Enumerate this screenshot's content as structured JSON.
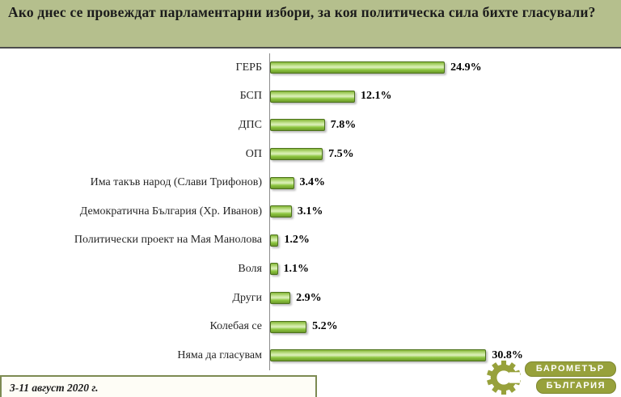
{
  "header": {
    "title": "Ако днес се провеждат парламентарни избори, за коя политическа сила бихте гласували?"
  },
  "chart_data": {
    "type": "bar",
    "orientation": "horizontal",
    "title": "Ако днес се провеждат парламентарни избори, за коя политическа сила бихте гласували?",
    "categories": [
      "ГЕРБ",
      "БСП",
      "ДПС",
      "ОП",
      "Има такъв народ (Слави Трифонов)",
      "Демократична България (Хр. Иванов)",
      "Политически проект на Мая Манолова",
      "Воля",
      "Други",
      "Колебая се",
      "Няма да гласувам"
    ],
    "values": [
      24.9,
      12.1,
      7.8,
      7.5,
      3.4,
      3.1,
      1.2,
      1.1,
      2.9,
      5.2,
      30.8
    ],
    "value_labels": [
      "24.9%",
      "12.1%",
      "7.8%",
      "7.5%",
      "3.4%",
      "3.1%",
      "1.2%",
      "1.1%",
      "2.9%",
      "5.2%",
      "30.8%"
    ],
    "xlabel": "",
    "ylabel": "",
    "axis_max": 50,
    "grid": false,
    "legend": false,
    "bar_color": "#8cc63f",
    "bar_border_color": "#4c711c"
  },
  "footer": {
    "date_range": "3-11 август 2020 г."
  },
  "logo": {
    "line1": "БАРОМЕТЪР",
    "line2": "БЪЛГАРИЯ",
    "color": "#97a13b"
  },
  "colors": {
    "header_bg": "#b5bf8d",
    "divider": "#4d4d4d"
  }
}
